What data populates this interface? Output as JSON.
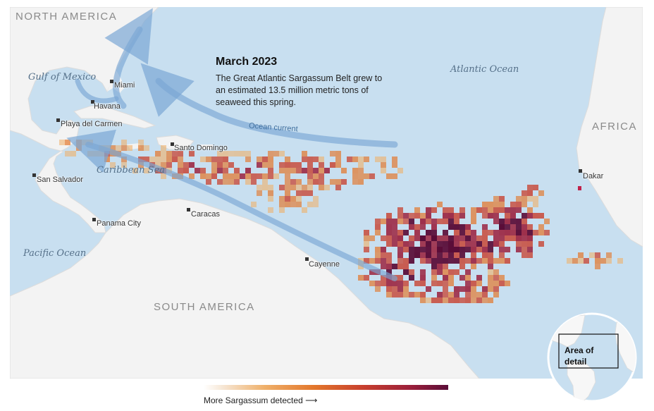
{
  "annotation": {
    "title": "March 2023",
    "body": "The Great Atlantic Sargassum Belt grew to an estimated 13.5 million metric tons of seaweed this spring."
  },
  "regions": {
    "north_america": "NORTH AMERICA",
    "south_america": "SOUTH AMERICA",
    "africa": "AFRICA"
  },
  "water_bodies": {
    "gulf_of_mexico": "Gulf of Mexico",
    "atlantic_ocean": "Atlantic Ocean",
    "caribbean_sea": "Caribbean Sea",
    "pacific_ocean": "Pacific Ocean"
  },
  "cities": {
    "miami": "Miami",
    "havana": "Havana",
    "playa_del_carmen": "Playa del Carmen",
    "santo_domingo": "Santo Domingo",
    "san_salvador": "San Salvador",
    "caracas": "Caracas",
    "panama_city": "Panama City",
    "cayenne": "Cayenne",
    "dakar": "Dakar"
  },
  "current_label": "Ocean current",
  "legend": {
    "label": "More Sargassum detected ⟶",
    "colors": [
      "#ffffff",
      "#efb06a",
      "#e3772c",
      "#c8402e",
      "#9a1f3b",
      "#5a0d38"
    ]
  },
  "locator": {
    "label": "Area of detail"
  },
  "colors": {
    "ocean": "#c8dff0",
    "land": "#f3f3f3",
    "current": "#7aa6d4"
  }
}
